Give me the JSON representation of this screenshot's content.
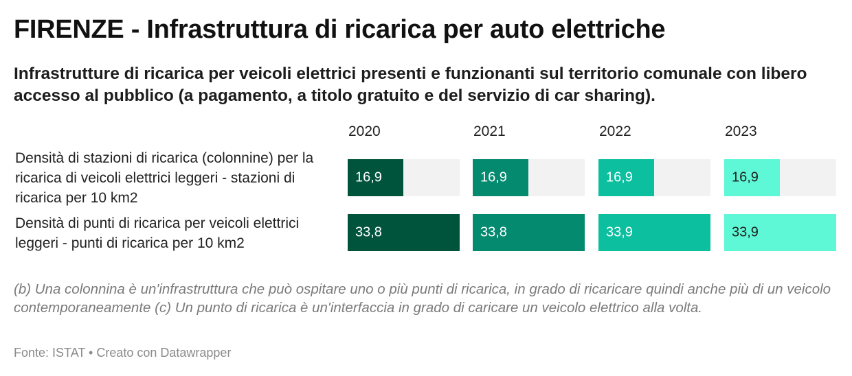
{
  "title": "FIRENZE - Infrastruttura di ricarica per auto elettriche",
  "subtitle": "Infrastrutture di ricarica per veicoli elettrici presenti e funzionanti sul territorio comunale con libero accesso al pubblico (a pagamento, a titolo gratuito e del servizio di car sharing).",
  "notes": "(b) Una colonnina è un'infrastruttura che può ospitare uno o più punti di ricarica, in grado di ricaricare quindi anche più di un veicolo contemporaneamente (c) Un punto di ricarica è un'interfaccia in grado di caricare un veicolo elettrico alla volta.",
  "source": "Fonte: ISTAT • Creato con Datawrapper",
  "colors": {
    "2020": "#00543c",
    "2021": "#048a6f",
    "2022": "#0bbf9f",
    "2023": "#5ef8d6",
    "cell_background": "#f2f2f2"
  },
  "chart_data": {
    "type": "table",
    "columns": [
      "2020",
      "2021",
      "2022",
      "2023"
    ],
    "rows": [
      {
        "label": "Densità di stazioni di ricarica (colonnine) per la ricarica di veicoli elettrici leggeri - stazioni di ricarica per 10 km2",
        "values": [
          16.9,
          16.9,
          16.9,
          16.9
        ],
        "display": [
          "16,9",
          "16,9",
          "16,9",
          "16,9"
        ]
      },
      {
        "label": "Densità di punti di ricarica per veicoli elettrici leggeri - punti di ricarica per 10 km2",
        "values": [
          33.8,
          33.8,
          33.9,
          33.9
        ],
        "display": [
          "33,8",
          "33,8",
          "33,9",
          "33,9"
        ]
      }
    ],
    "max": 33.9
  }
}
